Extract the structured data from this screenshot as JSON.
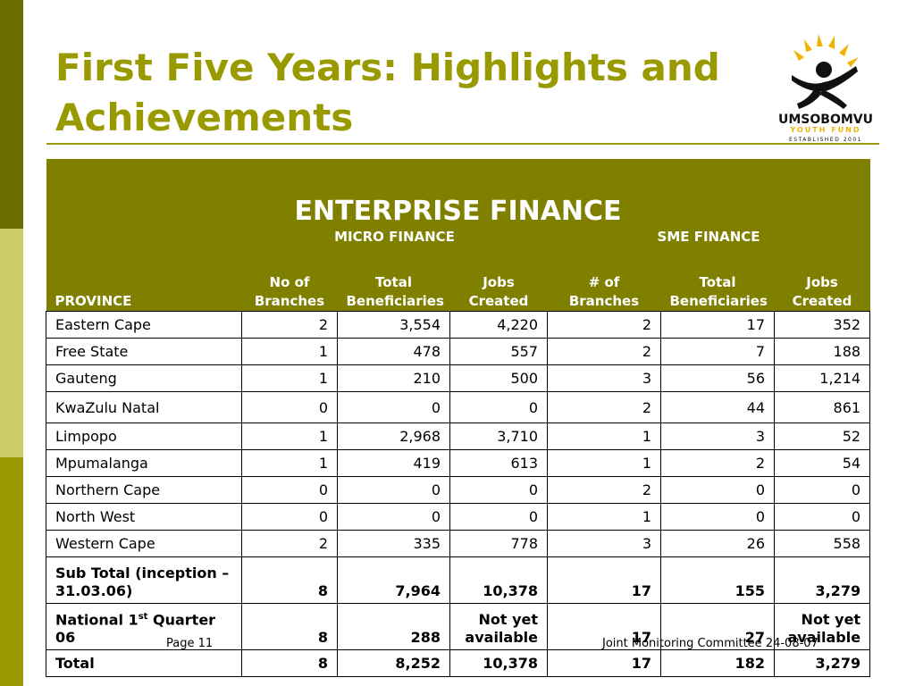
{
  "title": "First Five Years: Highlights and Achievements",
  "logo": {
    "line1": "UMSOBOMVU",
    "line2": "YOUTH FUND",
    "line3": "ESTABLISHED 2001"
  },
  "table": {
    "title": "ENTERPRISE FINANCE",
    "groups": {
      "micro": "MICRO FINANCE",
      "sme": "SME FINANCE"
    },
    "columns": [
      "PROVINCE",
      "No of Branches",
      "Total Beneficiaries",
      "Jobs Created",
      "# of Branches",
      "Total Beneficiaries",
      "Jobs Created"
    ],
    "rows": [
      [
        "Eastern Cape",
        "2",
        "3,554",
        "4,220",
        "2",
        "17",
        "352"
      ],
      [
        "Free State",
        "1",
        "478",
        "557",
        "2",
        "7",
        "188"
      ],
      [
        "Gauteng",
        "1",
        "210",
        "500",
        "3",
        "56",
        "1,214"
      ],
      [
        "KwaZulu Natal",
        "0",
        "0",
        "0",
        "2",
        "44",
        "861"
      ],
      [
        "Limpopo",
        "1",
        "2,968",
        "3,710",
        "1",
        "3",
        "52"
      ],
      [
        "Mpumalanga",
        "1",
        "419",
        "613",
        "1",
        "2",
        "54"
      ],
      [
        "Northern Cape",
        "0",
        "0",
        "0",
        "2",
        "0",
        "0"
      ],
      [
        "North West",
        "0",
        "0",
        "0",
        "1",
        "0",
        "0"
      ],
      [
        "Western Cape",
        "2",
        "335",
        "778",
        "3",
        "26",
        "558"
      ],
      [
        "Sub Total (inception – 31.03.06)",
        "8",
        "7,964",
        "10,378",
        "17",
        "155",
        "3,279"
      ],
      [
        "National 1st Quarter 06",
        "8",
        "288",
        "Not yet available",
        "17",
        "27",
        "Not yet available"
      ],
      [
        "Total",
        "8",
        "8,252",
        "10,378",
        "17",
        "182",
        "3,279"
      ]
    ]
  },
  "footer": {
    "page": "Page 11",
    "meeting": "Joint Monitoring  Committee 24-08-07"
  },
  "colors": {
    "olive": "#999900",
    "header_bg": "#808000",
    "bar_dark": "#6b6b00",
    "bar_light": "#cccc66",
    "logo_sun": "#f0b400"
  }
}
